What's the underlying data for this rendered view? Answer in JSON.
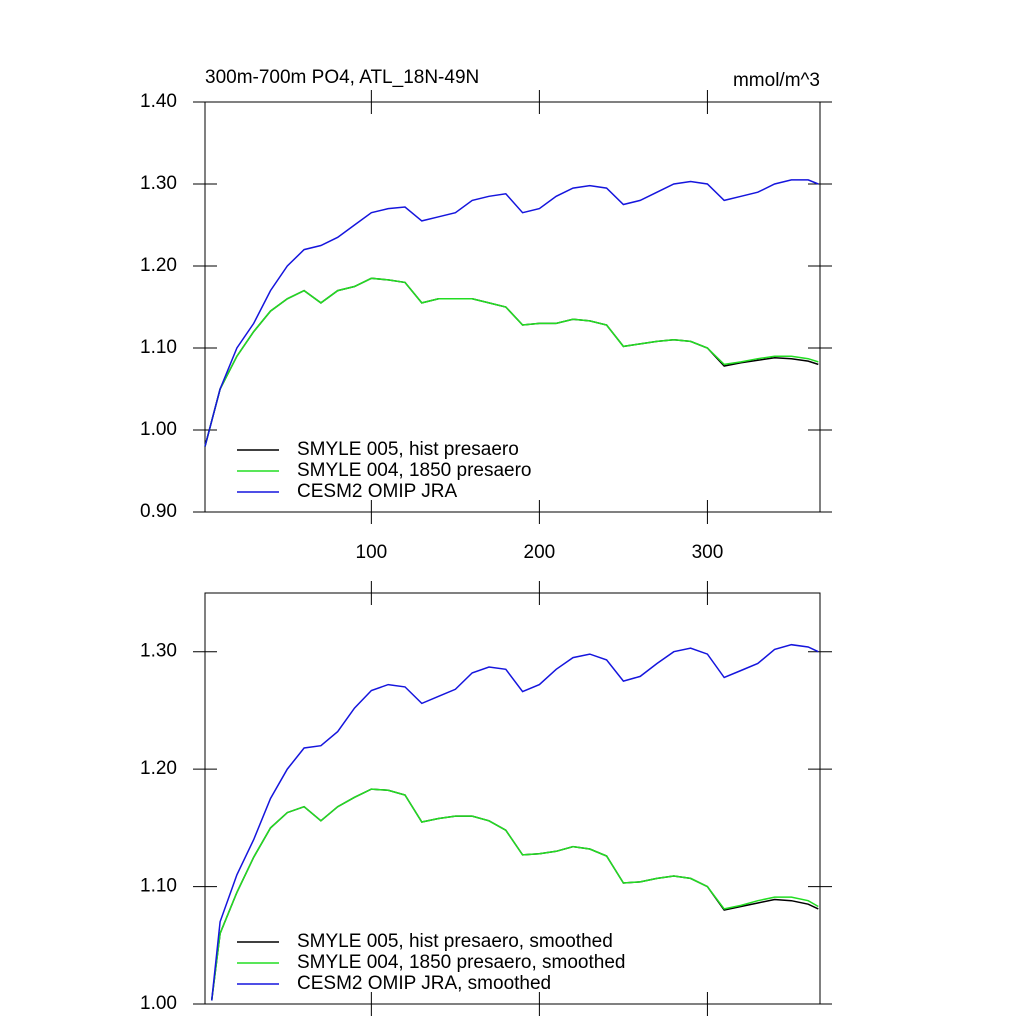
{
  "chart_data": [
    {
      "type": "line",
      "title": "300m-700m PO4, ATL_18N-49N",
      "units_label": "mmol/m^3",
      "x": [
        1,
        10,
        20,
        30,
        40,
        50,
        60,
        70,
        80,
        90,
        100,
        110,
        120,
        130,
        140,
        150,
        160,
        170,
        180,
        190,
        200,
        210,
        220,
        230,
        240,
        250,
        260,
        270,
        280,
        290,
        300,
        310,
        320,
        330,
        340,
        350,
        360,
        366
      ],
      "series": [
        {
          "name": "SMYLE 005, hist presaero",
          "color": "#000000",
          "values": [
            0.98,
            1.05,
            1.09,
            1.12,
            1.145,
            1.16,
            1.17,
            1.155,
            1.17,
            1.175,
            1.185,
            1.183,
            1.18,
            1.155,
            1.16,
            1.16,
            1.16,
            1.155,
            1.15,
            1.128,
            1.13,
            1.13,
            1.135,
            1.133,
            1.128,
            1.102,
            1.105,
            1.108,
            1.11,
            1.108,
            1.1,
            1.078,
            1.082,
            1.085,
            1.088,
            1.087,
            1.084,
            1.08
          ]
        },
        {
          "name": "SMYLE 004, 1850 presaero",
          "color": "#22dd22",
          "values": [
            0.98,
            1.05,
            1.09,
            1.12,
            1.145,
            1.16,
            1.17,
            1.155,
            1.17,
            1.175,
            1.185,
            1.183,
            1.18,
            1.155,
            1.16,
            1.16,
            1.16,
            1.155,
            1.15,
            1.128,
            1.13,
            1.13,
            1.135,
            1.133,
            1.128,
            1.102,
            1.105,
            1.108,
            1.11,
            1.108,
            1.1,
            1.08,
            1.083,
            1.087,
            1.09,
            1.09,
            1.087,
            1.083
          ]
        },
        {
          "name": "CESM2 OMIP JRA",
          "color": "#1515dd",
          "values": [
            0.98,
            1.05,
            1.1,
            1.13,
            1.17,
            1.2,
            1.22,
            1.225,
            1.235,
            1.25,
            1.265,
            1.27,
            1.272,
            1.255,
            1.26,
            1.265,
            1.28,
            1.285,
            1.288,
            1.265,
            1.27,
            1.285,
            1.295,
            1.298,
            1.295,
            1.275,
            1.28,
            1.29,
            1.3,
            1.303,
            1.3,
            1.28,
            1.285,
            1.29,
            1.3,
            1.305,
            1.305,
            1.3
          ]
        }
      ],
      "xlim": [
        1,
        367
      ],
      "xticks": [
        100,
        200,
        300
      ],
      "x_tick_labels": true,
      "ylim": [
        0.9,
        1.4
      ],
      "yticks": [
        {
          "value": 0.9,
          "label": "0.90"
        },
        {
          "value": 1.0,
          "label": "1.00"
        },
        {
          "value": 1.1,
          "label": "1.10"
        },
        {
          "value": 1.2,
          "label": "1.20"
        },
        {
          "value": 1.3,
          "label": "1.30"
        },
        {
          "value": 1.4,
          "label": "1.40"
        }
      ],
      "legend": "lower left"
    },
    {
      "type": "line",
      "x": [
        5,
        10,
        20,
        30,
        40,
        50,
        60,
        70,
        80,
        90,
        100,
        110,
        120,
        130,
        140,
        150,
        160,
        170,
        180,
        190,
        200,
        210,
        220,
        230,
        240,
        250,
        260,
        270,
        280,
        290,
        300,
        310,
        320,
        330,
        340,
        350,
        360,
        366
      ],
      "series": [
        {
          "name": "SMYLE 005, hist presaero, smoothed",
          "color": "#000000",
          "values": [
            1.003,
            1.06,
            1.095,
            1.125,
            1.15,
            1.163,
            1.168,
            1.156,
            1.168,
            1.176,
            1.183,
            1.182,
            1.178,
            1.155,
            1.158,
            1.16,
            1.16,
            1.156,
            1.148,
            1.127,
            1.128,
            1.13,
            1.134,
            1.132,
            1.126,
            1.103,
            1.104,
            1.107,
            1.109,
            1.107,
            1.1,
            1.08,
            1.083,
            1.086,
            1.089,
            1.088,
            1.085,
            1.081
          ]
        },
        {
          "name": "SMYLE 004, 1850 presaero, smoothed",
          "color": "#22dd22",
          "values": [
            1.003,
            1.06,
            1.095,
            1.125,
            1.15,
            1.163,
            1.168,
            1.156,
            1.168,
            1.176,
            1.183,
            1.182,
            1.178,
            1.155,
            1.158,
            1.16,
            1.16,
            1.156,
            1.148,
            1.127,
            1.128,
            1.13,
            1.134,
            1.132,
            1.126,
            1.103,
            1.104,
            1.107,
            1.109,
            1.107,
            1.1,
            1.081,
            1.084,
            1.088,
            1.091,
            1.091,
            1.088,
            1.083
          ]
        },
        {
          "name": "CESM2 OMIP JRA, smoothed",
          "color": "#1515dd",
          "values": [
            1.003,
            1.07,
            1.11,
            1.14,
            1.175,
            1.2,
            1.218,
            1.22,
            1.232,
            1.252,
            1.267,
            1.272,
            1.27,
            1.256,
            1.262,
            1.268,
            1.282,
            1.287,
            1.285,
            1.266,
            1.272,
            1.285,
            1.295,
            1.298,
            1.293,
            1.275,
            1.279,
            1.29,
            1.3,
            1.303,
            1.298,
            1.278,
            1.284,
            1.29,
            1.302,
            1.306,
            1.304,
            1.3
          ]
        }
      ],
      "xlim": [
        1,
        367
      ],
      "xticks": [
        100,
        200,
        300
      ],
      "x_tick_labels": false,
      "ylim": [
        1.0,
        1.35
      ],
      "yticks": [
        {
          "value": 1.0,
          "label": "1.00"
        },
        {
          "value": 1.1,
          "label": "1.10"
        },
        {
          "value": 1.2,
          "label": "1.20"
        },
        {
          "value": 1.3,
          "label": "1.30"
        }
      ],
      "legend": "lower left"
    }
  ]
}
